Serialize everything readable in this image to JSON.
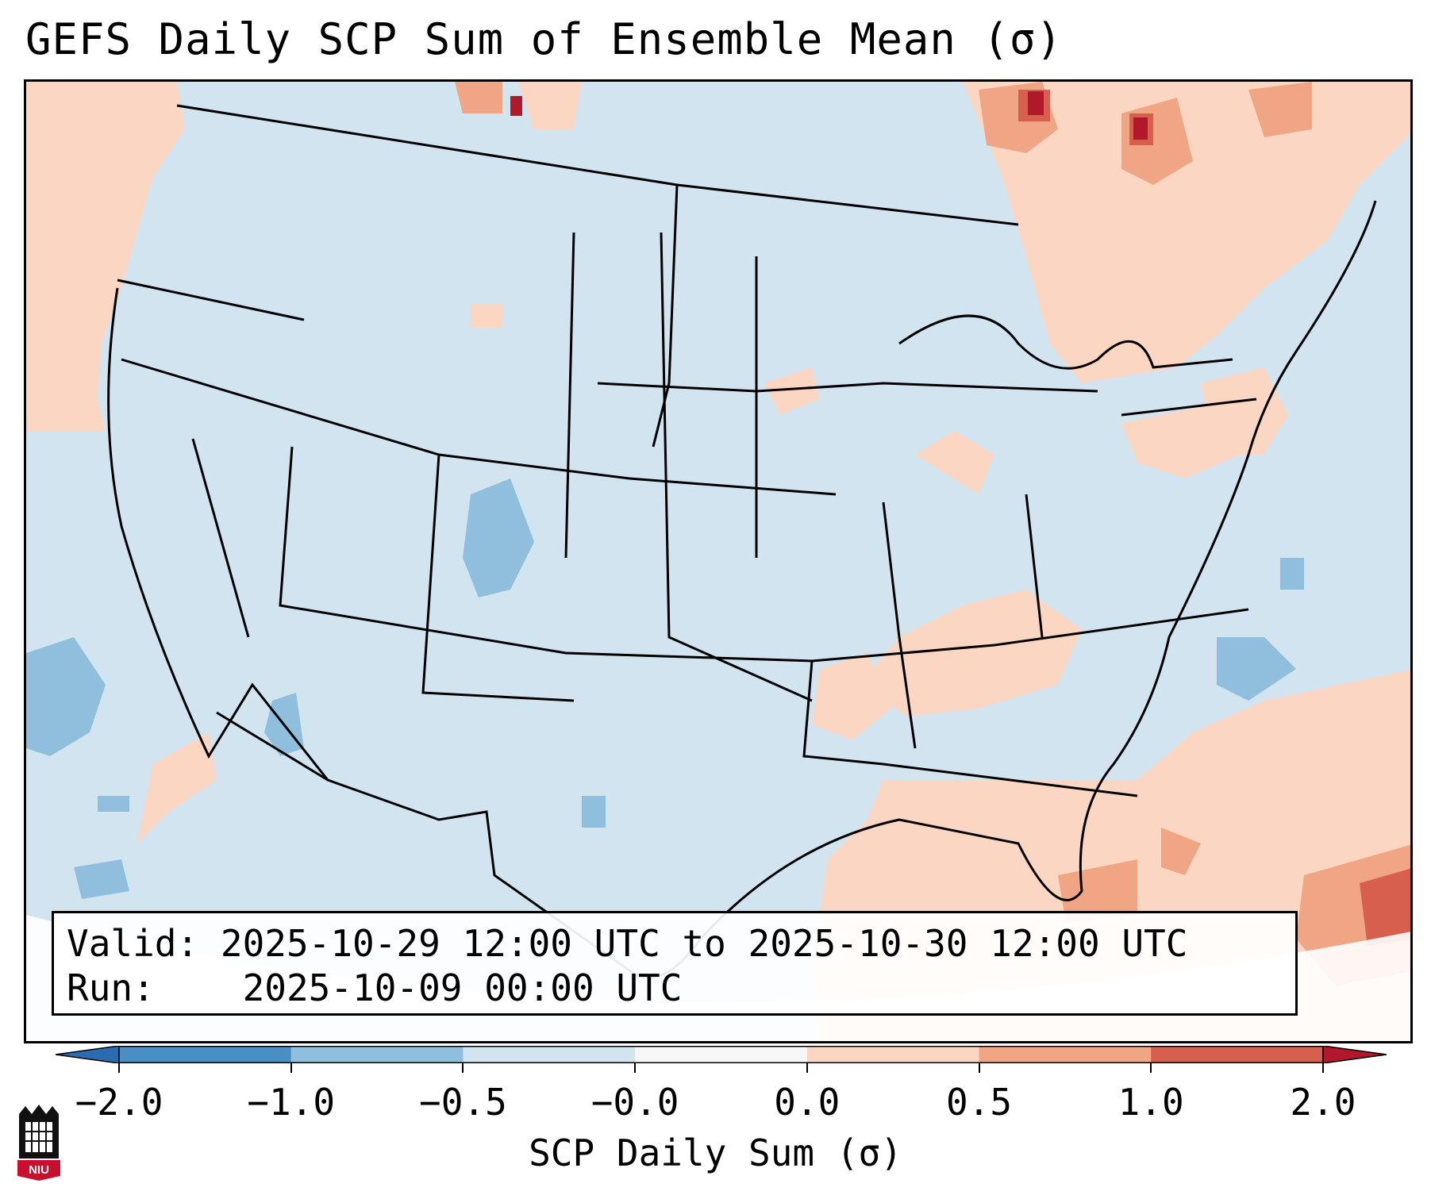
{
  "title": "GEFS Daily SCP Sum of Ensemble Mean (σ)",
  "info": {
    "valid_label": "Valid:",
    "valid_value": "2025-10-29 12:00 UTC to 2025-10-30 12:00 UTC",
    "run_label": "Run:",
    "run_value": "2025-10-09 00:00 UTC"
  },
  "colorbar": {
    "label": "SCP Daily Sum (σ)",
    "ticks": [
      "−2.0",
      "−1.0",
      "−0.5",
      "−0.0",
      "0.0",
      "0.5",
      "1.0",
      "2.0"
    ],
    "bins": [
      {
        "range": "< -2.0",
        "color": "#2b6cb0"
      },
      {
        "range": "-2.0 to -1.0",
        "color": "#4a8fc4"
      },
      {
        "range": "-1.0 to -0.5",
        "color": "#8fbfdc"
      },
      {
        "range": "-0.5 to -0.0",
        "color": "#d2e4f0"
      },
      {
        "range": "-0.0 to 0.0",
        "color": "#f7f7f7"
      },
      {
        "range": "0.0 to 0.5",
        "color": "#fbd6c2"
      },
      {
        "range": "0.5 to 1.0",
        "color": "#f0a585"
      },
      {
        "range": "1.0 to 2.0",
        "color": "#d6604d"
      },
      {
        "range": "> 2.0",
        "color": "#b2182b"
      }
    ]
  },
  "logo": {
    "text": "NIU",
    "color": "#c8102e"
  }
}
